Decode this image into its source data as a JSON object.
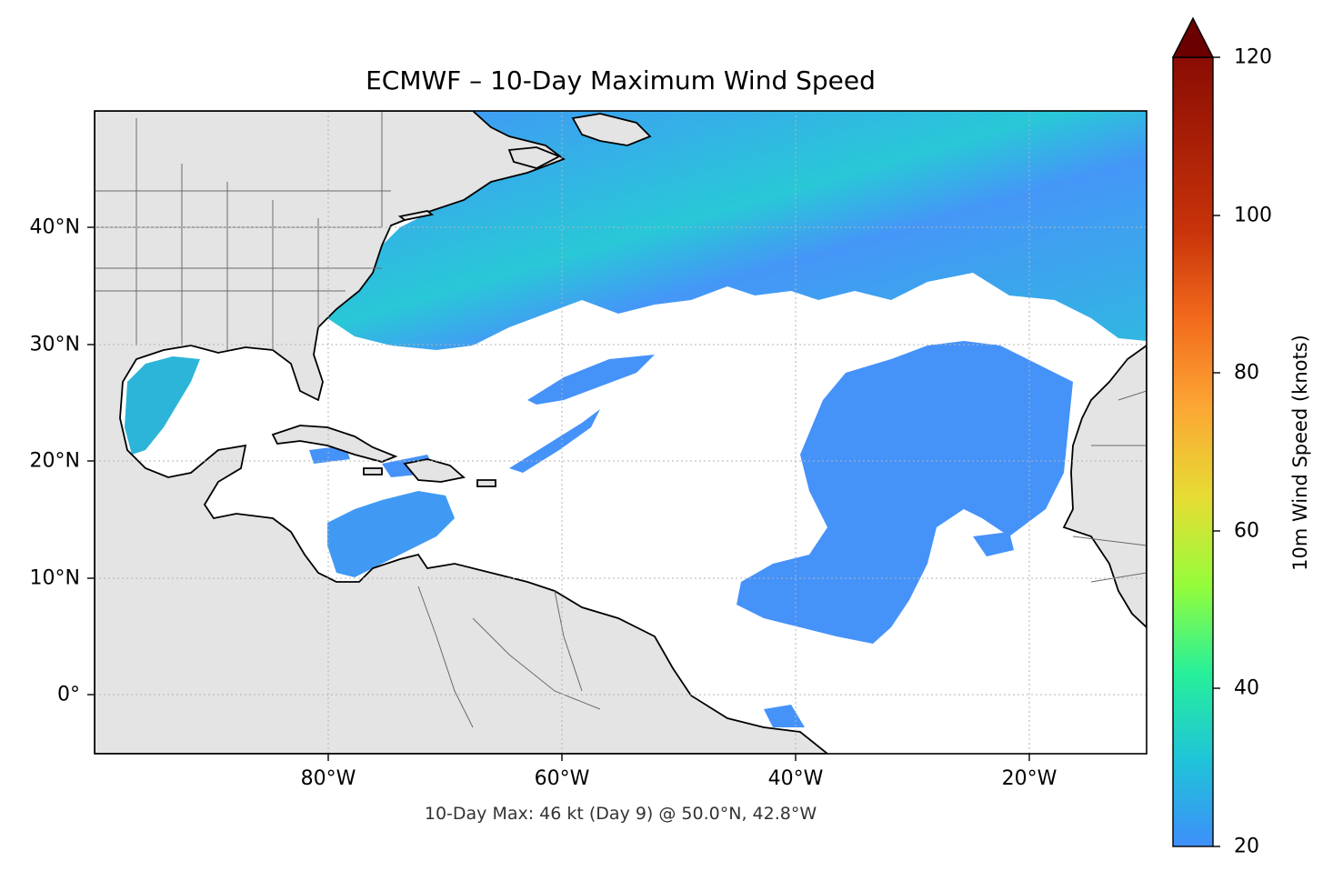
{
  "title": "ECMWF – 10-Day Maximum Wind Speed",
  "footer": "10-Day Max: 46 kt (Day 9) @ 50.0°N, 42.8°W",
  "map": {
    "type": "geographic filled wind-speed map",
    "lon_range": [
      -100,
      -10
    ],
    "lat_range": [
      -5,
      50
    ],
    "x_ticks": [
      {
        "lon": -80,
        "label": "80°W"
      },
      {
        "lon": -60,
        "label": "60°W"
      },
      {
        "lon": -40,
        "label": "40°W"
      },
      {
        "lon": -20,
        "label": "20°W"
      }
    ],
    "y_ticks": [
      {
        "lat": 40,
        "label": "40°N"
      },
      {
        "lat": 30,
        "label": "30°N"
      },
      {
        "lat": 20,
        "label": "20°N"
      },
      {
        "lat": 10,
        "label": "10°N"
      },
      {
        "lat": 0,
        "label": "0°"
      }
    ],
    "gridlines": true,
    "land_color": "#e4e4e4",
    "ocean_color": "#ffffff",
    "max_point": {
      "lat": 50.0,
      "lon": -42.8,
      "value": 46,
      "day": 9
    }
  },
  "colorbar": {
    "label": "10m Wind Speed (knots)",
    "min": 20,
    "max": 120,
    "extend": "max",
    "ticks": [
      {
        "value": 120,
        "label": "120"
      },
      {
        "value": 100,
        "label": "100"
      },
      {
        "value": 80,
        "label": "80"
      },
      {
        "value": 60,
        "label": "60"
      },
      {
        "value": 40,
        "label": "40"
      },
      {
        "value": 20,
        "label": "20"
      }
    ],
    "colors": [
      "#3e8ffa",
      "#1fc4d8",
      "#27f09a",
      "#94fc3b",
      "#e6dd34",
      "#fca534",
      "#f26a1c",
      "#c8330a",
      "#8a0c03",
      "#6b0000"
    ],
    "extend_color": "#6b0000"
  }
}
